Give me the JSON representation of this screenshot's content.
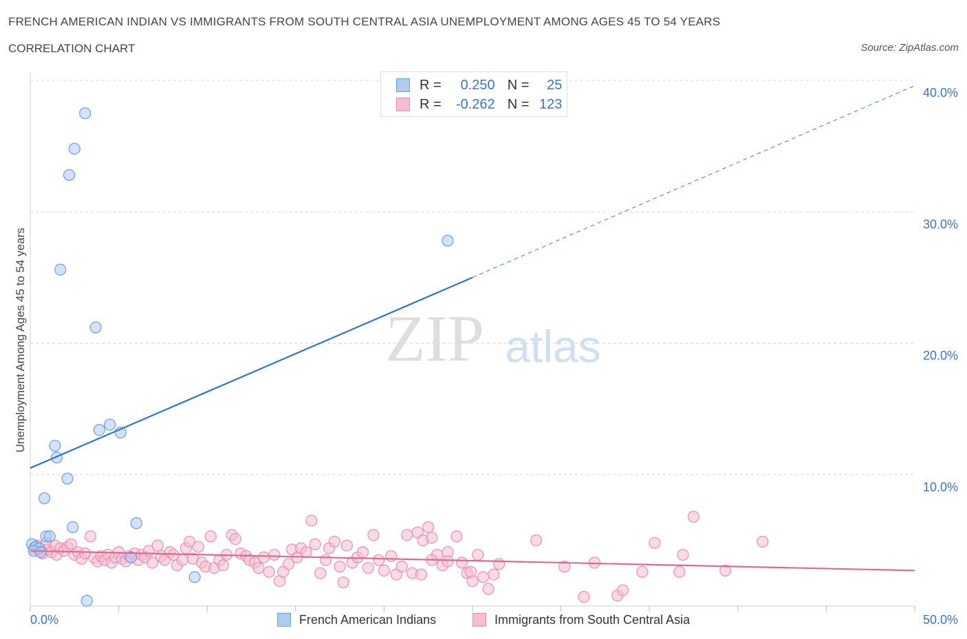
{
  "header": {
    "title": "FRENCH AMERICAN INDIAN VS IMMIGRANTS FROM SOUTH CENTRAL ASIA UNEMPLOYMENT AMONG AGES 45 TO 54 YEARS",
    "subtitle": "CORRELATION CHART",
    "source": "Source: ZipAtlas.com"
  },
  "legend_top": {
    "rows": [
      {
        "r_label": "R =",
        "r_value": "0.250",
        "n_label": "N =",
        "n_value": "25"
      },
      {
        "r_label": "R =",
        "r_value": "-0.262",
        "n_label": "N =",
        "n_value": "123"
      }
    ]
  },
  "watermark": {
    "zip": "ZIP",
    "atlas": "atlas"
  },
  "colors": {
    "blue_fill": "#aecbf0",
    "blue_stroke": "#6a9fd8",
    "blue_line": "#2f74d0",
    "pink_fill": "#f6bcd0",
    "pink_stroke": "#ea8fb0",
    "pink_line": "#e3678e",
    "tick_text": "#3a74c4"
  },
  "chart_data": {
    "type": "scatter",
    "title": "FRENCH AMERICAN INDIAN VS IMMIGRANTS FROM SOUTH CENTRAL ASIA UNEMPLOYMENT AMONG AGES 45 TO 54 YEARS",
    "xlabel": "",
    "ylabel": "Unemployment Among Ages 45 to 54 years",
    "xlim": [
      0,
      50
    ],
    "ylim": [
      0,
      40
    ],
    "x_tick_labels": [
      "0.0%",
      "50.0%"
    ],
    "y_ticks": [
      10,
      20,
      30,
      40
    ],
    "y_tick_labels": [
      "10.0%",
      "20.0%",
      "30.0%",
      "40.0%"
    ],
    "grid": true,
    "series": [
      {
        "name": "French American Indians",
        "r": 0.25,
        "n": 25,
        "trend": {
          "x0": 0,
          "y0": 10.5,
          "x1": 25,
          "y1": 25.0,
          "dashed_to_x": 50,
          "dashed_to_y": 39.6
        },
        "points": [
          [
            3.1,
            37.5
          ],
          [
            2.5,
            34.8
          ],
          [
            2.2,
            32.8
          ],
          [
            1.7,
            25.6
          ],
          [
            23.6,
            27.8
          ],
          [
            3.7,
            21.2
          ],
          [
            4.5,
            13.8
          ],
          [
            3.9,
            13.4
          ],
          [
            5.1,
            13.2
          ],
          [
            1.4,
            12.2
          ],
          [
            1.5,
            11.3
          ],
          [
            2.1,
            9.7
          ],
          [
            0.8,
            8.2
          ],
          [
            2.4,
            6.0
          ],
          [
            6.0,
            6.3
          ],
          [
            0.9,
            5.3
          ],
          [
            1.1,
            5.3
          ],
          [
            0.1,
            4.7
          ],
          [
            0.3,
            4.5
          ],
          [
            0.5,
            4.4
          ],
          [
            0.2,
            4.2
          ],
          [
            0.6,
            4.1
          ],
          [
            5.7,
            3.7
          ],
          [
            9.3,
            2.2
          ],
          [
            3.2,
            0.4
          ]
        ]
      },
      {
        "name": "Immigrants from South Central Asia",
        "r": -0.262,
        "n": 123,
        "trend": {
          "x0": 0,
          "y0": 4.2,
          "x1": 50,
          "y1": 2.7
        },
        "points": [
          [
            0.2,
            4.4
          ],
          [
            0.4,
            4.6
          ],
          [
            0.6,
            4.2
          ],
          [
            0.7,
            4.0
          ],
          [
            0.9,
            4.8
          ],
          [
            1.0,
            4.3
          ],
          [
            1.2,
            4.1
          ],
          [
            1.4,
            4.6
          ],
          [
            1.5,
            3.9
          ],
          [
            1.7,
            4.4
          ],
          [
            1.9,
            4.2
          ],
          [
            2.1,
            4.5
          ],
          [
            2.3,
            4.7
          ],
          [
            2.5,
            3.9
          ],
          [
            2.7,
            4.1
          ],
          [
            2.9,
            3.6
          ],
          [
            3.1,
            4.0
          ],
          [
            3.4,
            5.3
          ],
          [
            3.6,
            3.7
          ],
          [
            3.8,
            3.4
          ],
          [
            4.0,
            3.8
          ],
          [
            4.2,
            3.5
          ],
          [
            4.4,
            3.9
          ],
          [
            4.6,
            3.3
          ],
          [
            4.8,
            3.7
          ],
          [
            5.0,
            4.1
          ],
          [
            5.2,
            3.6
          ],
          [
            5.4,
            3.4
          ],
          [
            5.6,
            3.8
          ],
          [
            5.9,
            4.0
          ],
          [
            6.1,
            3.5
          ],
          [
            6.3,
            3.9
          ],
          [
            6.5,
            3.7
          ],
          [
            6.7,
            4.2
          ],
          [
            6.9,
            3.3
          ],
          [
            7.2,
            4.6
          ],
          [
            7.4,
            3.8
          ],
          [
            7.6,
            3.5
          ],
          [
            7.9,
            4.1
          ],
          [
            8.1,
            3.9
          ],
          [
            8.3,
            3.1
          ],
          [
            8.6,
            3.5
          ],
          [
            8.8,
            4.4
          ],
          [
            9.0,
            4.9
          ],
          [
            9.2,
            3.6
          ],
          [
            9.5,
            4.5
          ],
          [
            9.7,
            3.3
          ],
          [
            9.9,
            3.0
          ],
          [
            10.2,
            5.3
          ],
          [
            10.4,
            2.9
          ],
          [
            10.7,
            3.5
          ],
          [
            10.9,
            3.1
          ],
          [
            11.1,
            3.9
          ],
          [
            11.4,
            5.4
          ],
          [
            11.6,
            5.1
          ],
          [
            11.9,
            4.0
          ],
          [
            12.2,
            3.8
          ],
          [
            12.4,
            3.5
          ],
          [
            12.7,
            3.3
          ],
          [
            12.9,
            2.9
          ],
          [
            13.2,
            3.7
          ],
          [
            13.5,
            2.6
          ],
          [
            13.8,
            3.9
          ],
          [
            14.1,
            1.9
          ],
          [
            14.3,
            2.6
          ],
          [
            14.6,
            3.2
          ],
          [
            14.8,
            4.3
          ],
          [
            15.1,
            3.7
          ],
          [
            15.3,
            4.4
          ],
          [
            15.6,
            4.1
          ],
          [
            15.9,
            6.5
          ],
          [
            16.1,
            4.7
          ],
          [
            16.4,
            2.5
          ],
          [
            16.7,
            3.5
          ],
          [
            16.9,
            4.4
          ],
          [
            17.2,
            4.9
          ],
          [
            17.5,
            3.0
          ],
          [
            17.7,
            1.8
          ],
          [
            17.9,
            4.6
          ],
          [
            18.2,
            3.3
          ],
          [
            18.5,
            3.7
          ],
          [
            18.8,
            4.1
          ],
          [
            19.1,
            2.9
          ],
          [
            19.4,
            5.4
          ],
          [
            19.7,
            3.5
          ],
          [
            20.0,
            2.7
          ],
          [
            20.4,
            3.8
          ],
          [
            20.7,
            2.4
          ],
          [
            21.0,
            3.0
          ],
          [
            21.3,
            5.4
          ],
          [
            21.6,
            2.5
          ],
          [
            21.9,
            5.6
          ],
          [
            22.2,
            5.0
          ],
          [
            22.5,
            6.0
          ],
          [
            22.7,
            5.2
          ],
          [
            23.0,
            3.9
          ],
          [
            23.3,
            3.1
          ],
          [
            23.6,
            4.1
          ],
          [
            24.1,
            5.3
          ],
          [
            24.4,
            3.3
          ],
          [
            24.7,
            2.5
          ],
          [
            25.0,
            1.9
          ],
          [
            25.3,
            3.9
          ],
          [
            25.6,
            2.2
          ],
          [
            25.9,
            1.3
          ],
          [
            26.2,
            2.4
          ],
          [
            26.5,
            3.2
          ],
          [
            24.9,
            2.6
          ],
          [
            22.7,
            3.5
          ],
          [
            22.1,
            2.4
          ],
          [
            23.6,
            3.4
          ],
          [
            28.6,
            5.0
          ],
          [
            30.2,
            3.0
          ],
          [
            31.3,
            0.7
          ],
          [
            31.9,
            3.3
          ],
          [
            33.2,
            0.8
          ],
          [
            33.5,
            1.2
          ],
          [
            34.6,
            2.6
          ],
          [
            35.3,
            4.8
          ],
          [
            36.7,
            2.6
          ],
          [
            36.9,
            3.9
          ],
          [
            37.5,
            6.8
          ],
          [
            39.3,
            2.7
          ],
          [
            41.4,
            4.9
          ]
        ]
      }
    ]
  },
  "legend_bottom": [
    {
      "label": "French American Indians"
    },
    {
      "label": "Immigrants from South Central Asia"
    }
  ]
}
